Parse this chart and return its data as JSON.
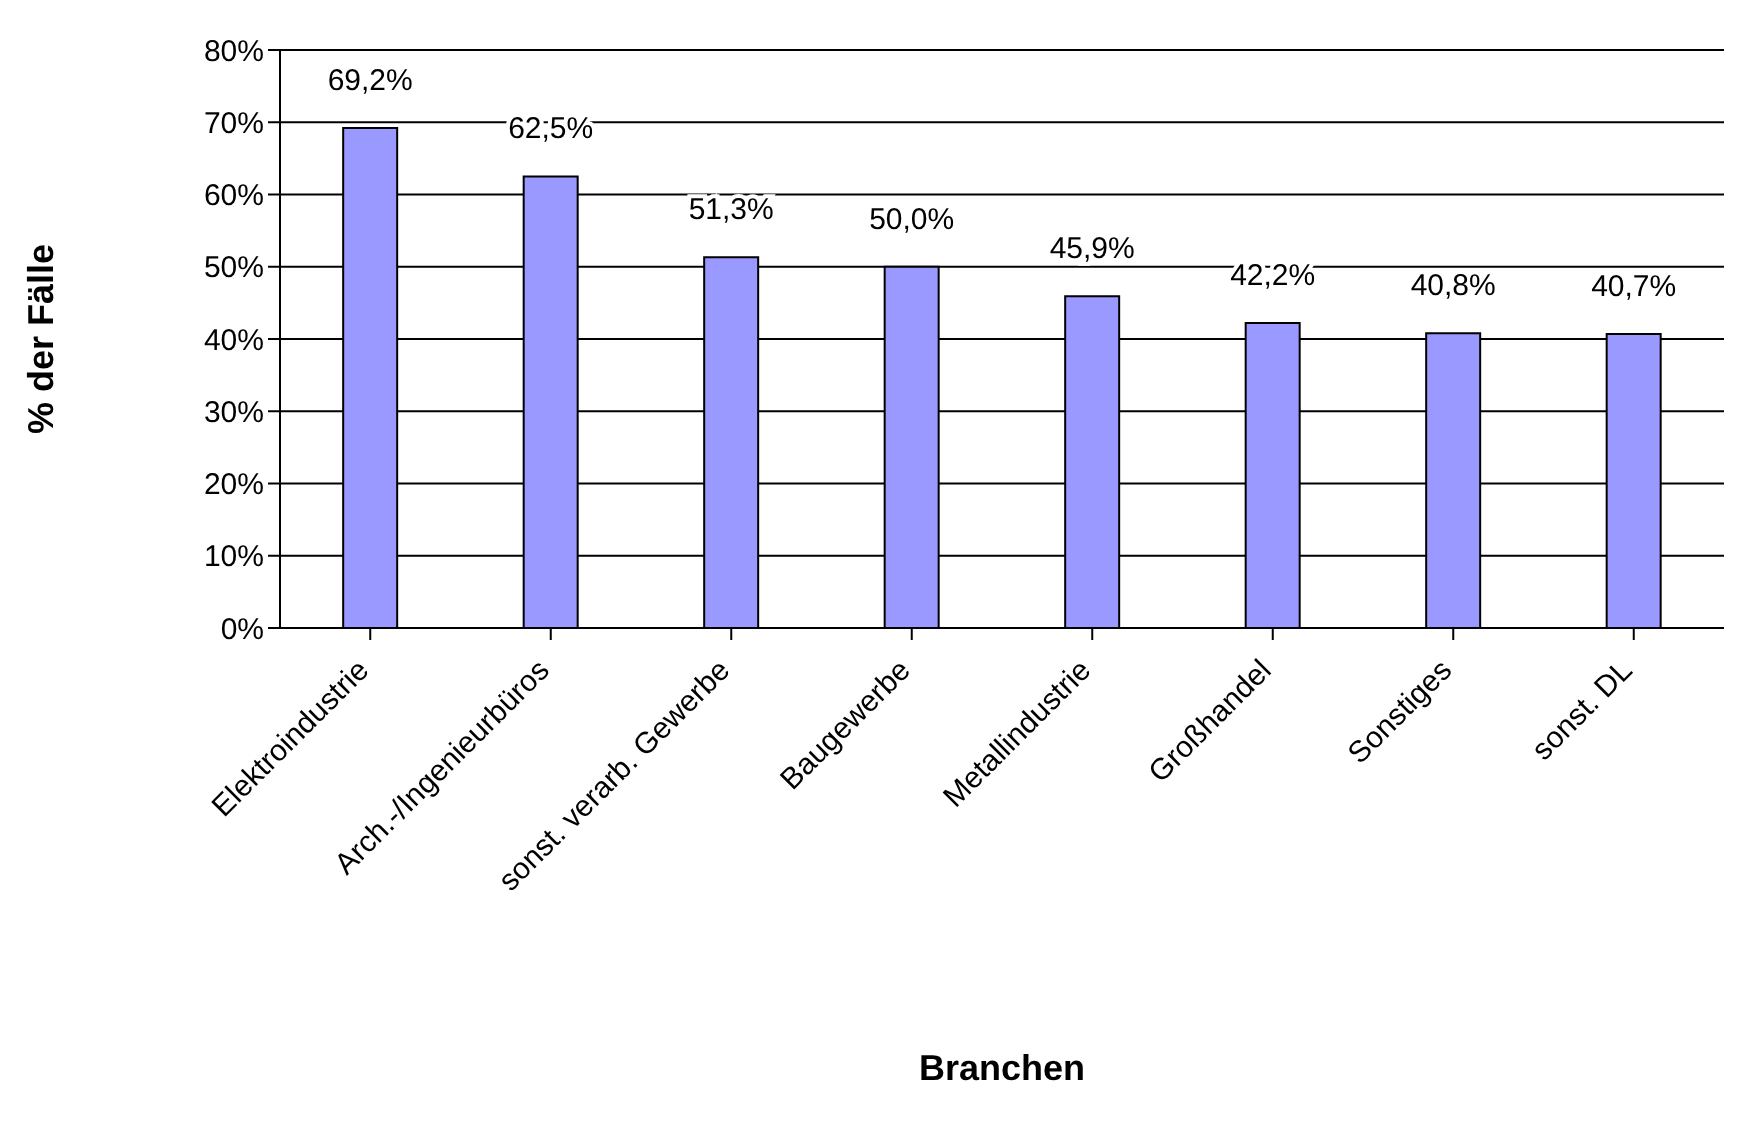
{
  "chart_data": {
    "type": "bar",
    "xlabel": "Branchen",
    "ylabel": "% der Fälle",
    "categories": [
      "Elektroindustrie",
      "Arch.-/Ingenieurbüros",
      "sonst. verarb. Gewerbe",
      "Baugewerbe",
      "Metallindustrie",
      "Großhandel",
      "Sonstiges",
      "sonst. DL"
    ],
    "values": [
      69.2,
      62.5,
      51.3,
      50.0,
      45.9,
      42.2,
      40.8,
      40.7
    ],
    "value_labels": [
      "69,2%",
      "62,5%",
      "51,3%",
      "50,0%",
      "45,9%",
      "42,2%",
      "40,8%",
      "40,7%"
    ],
    "color": "#9999ff",
    "ylim": [
      0,
      80
    ],
    "yticks": [
      {
        "value": 0,
        "label": "0%"
      },
      {
        "value": 10,
        "label": "10%"
      },
      {
        "value": 20,
        "label": "20%"
      },
      {
        "value": 30,
        "label": "30%"
      },
      {
        "value": 40,
        "label": "40%"
      },
      {
        "value": 50,
        "label": "50%"
      },
      {
        "value": 60,
        "label": "60%"
      },
      {
        "value": 70,
        "label": "70%"
      },
      {
        "value": 80,
        "label": "80%"
      }
    ],
    "grid": "y",
    "legend": false
  }
}
